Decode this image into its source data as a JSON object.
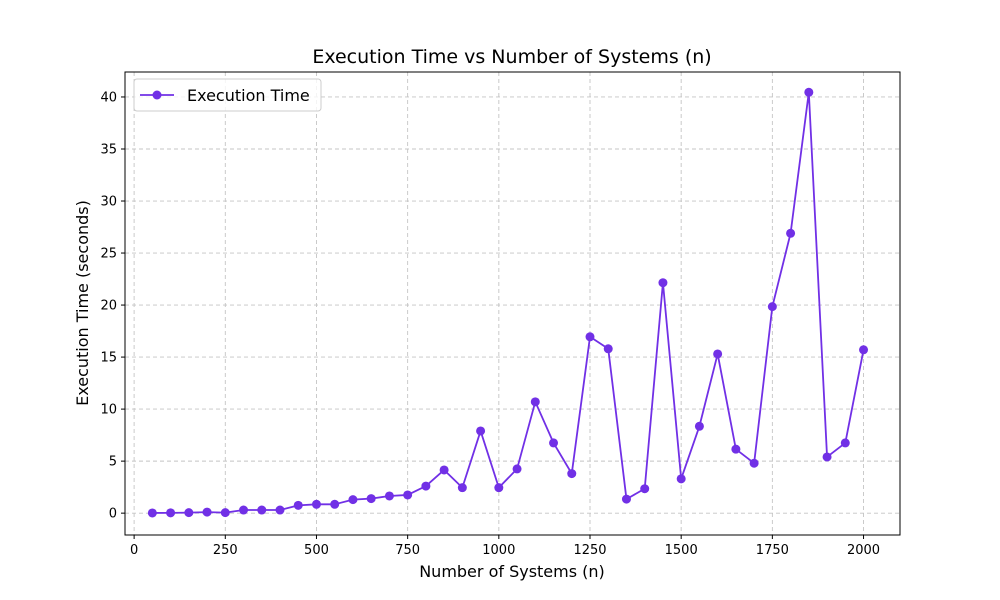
{
  "colors": {
    "series": "#7130e6",
    "grid": "#c4c4c4",
    "axis": "#000000",
    "background": "#ffffff"
  },
  "chart_data": {
    "type": "line",
    "title": "Execution Time vs Number of Systems (n)",
    "xlabel": "Number of Systems (n)",
    "ylabel": "Execution Time (seconds)",
    "xlim": [
      -25,
      2100
    ],
    "ylim": [
      -2.1,
      42.4
    ],
    "xticks": [
      0,
      250,
      500,
      750,
      1000,
      1250,
      1500,
      1750,
      2000
    ],
    "yticks": [
      0,
      5,
      10,
      15,
      20,
      25,
      30,
      35,
      40
    ],
    "grid": true,
    "grid_style": "dashed",
    "legend_position": "upper-left",
    "marker": "circle",
    "series": [
      {
        "name": "Execution Time",
        "x": [
          50,
          100,
          150,
          200,
          250,
          300,
          350,
          400,
          450,
          500,
          550,
          600,
          650,
          700,
          750,
          800,
          850,
          900,
          950,
          1000,
          1050,
          1100,
          1150,
          1200,
          1250,
          1300,
          1350,
          1400,
          1450,
          1500,
          1550,
          1600,
          1650,
          1700,
          1750,
          1800,
          1850,
          1900,
          1950,
          2000
        ],
        "y": [
          0.02,
          0.03,
          0.05,
          0.1,
          0.05,
          0.3,
          0.3,
          0.3,
          0.75,
          0.85,
          0.85,
          1.3,
          1.4,
          1.65,
          1.75,
          2.6,
          4.15,
          2.45,
          7.9,
          2.45,
          4.25,
          10.7,
          6.75,
          3.8,
          16.95,
          15.8,
          1.35,
          2.35,
          22.15,
          3.3,
          8.35,
          15.3,
          6.15,
          4.8,
          19.85,
          26.9,
          40.45,
          5.4,
          6.75,
          15.7
        ]
      }
    ]
  }
}
